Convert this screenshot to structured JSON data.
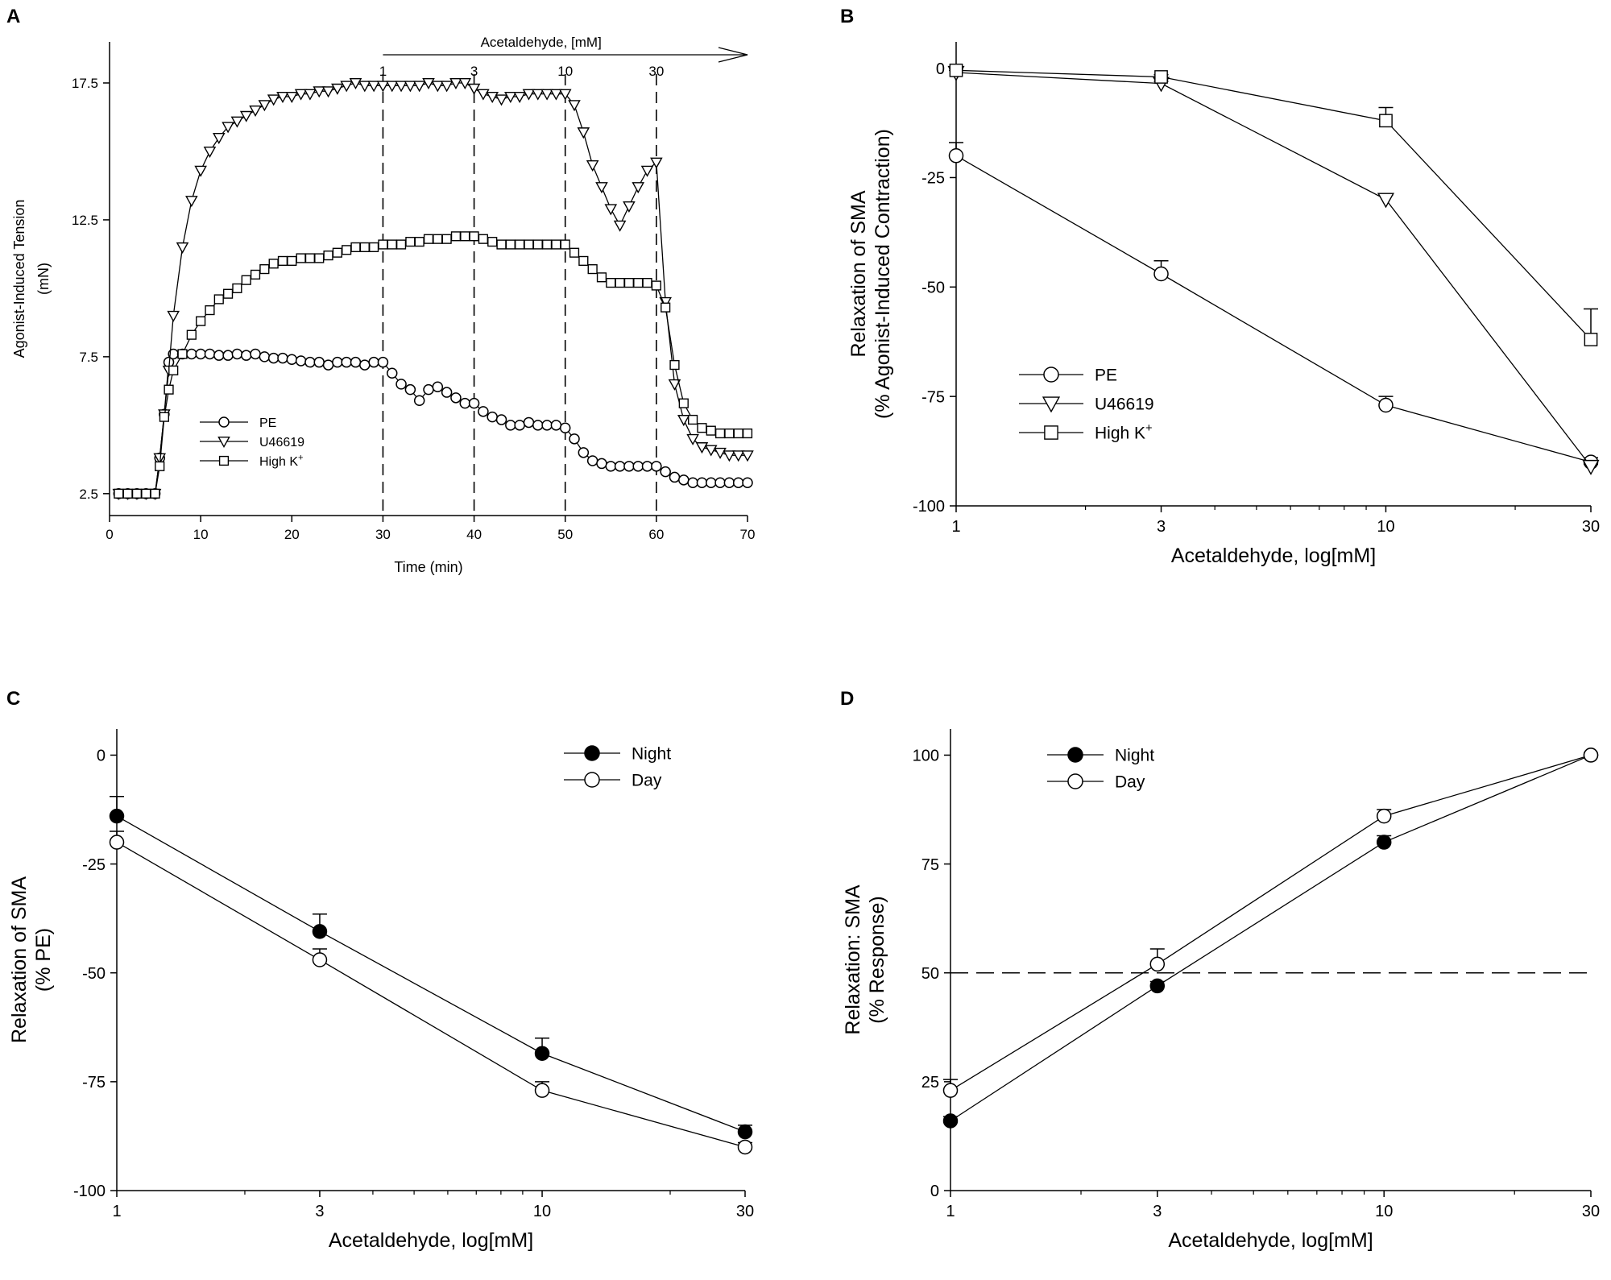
{
  "chart_data": [
    {
      "panel": "A",
      "type": "line",
      "xlabel": "Time (min)",
      "ylabel": "Agonist-Induced Tension",
      "ylabel2": "(mN)",
      "xlim": [
        0,
        70
      ],
      "ylim": [
        1.7,
        19.0
      ],
      "xticks": [
        0,
        10,
        20,
        30,
        40,
        50,
        60,
        70
      ],
      "yticks": [
        2.5,
        7.5,
        12.5,
        17.5
      ],
      "annotation": "Acetaldehyde, [mM]",
      "dose_marks": [
        {
          "label": "1",
          "x": 30
        },
        {
          "label": "3",
          "x": 40
        },
        {
          "label": "10",
          "x": 50
        },
        {
          "label": "30",
          "x": 60
        }
      ],
      "legend": [
        "PE",
        "U46619",
        "High K+"
      ],
      "series": [
        {
          "name": "PE",
          "marker": "circle",
          "x": [
            1,
            2,
            3,
            4,
            5,
            5.5,
            6,
            6.5,
            7,
            8,
            9,
            10,
            11,
            12,
            13,
            14,
            15,
            16,
            17,
            18,
            19,
            20,
            21,
            22,
            23,
            24,
            25,
            26,
            27,
            28,
            29,
            30,
            31,
            32,
            33,
            34,
            35,
            36,
            37,
            38,
            39,
            40,
            41,
            42,
            43,
            44,
            45,
            46,
            47,
            48,
            49,
            50,
            51,
            52,
            53,
            54,
            55,
            56,
            57,
            58,
            59,
            60,
            61,
            62,
            63,
            64,
            65,
            66,
            67,
            68,
            69,
            70
          ],
          "y": [
            2.5,
            2.5,
            2.5,
            2.5,
            2.5,
            3.8,
            5.4,
            7.3,
            7.6,
            7.6,
            7.6,
            7.6,
            7.6,
            7.55,
            7.55,
            7.6,
            7.55,
            7.6,
            7.5,
            7.45,
            7.45,
            7.4,
            7.35,
            7.3,
            7.3,
            7.2,
            7.3,
            7.3,
            7.3,
            7.2,
            7.3,
            7.3,
            6.9,
            6.5,
            6.3,
            5.9,
            6.3,
            6.4,
            6.2,
            6.0,
            5.8,
            5.8,
            5.5,
            5.3,
            5.2,
            5.0,
            5.0,
            5.1,
            5.0,
            5.0,
            5.0,
            4.9,
            4.5,
            4.0,
            3.7,
            3.6,
            3.5,
            3.5,
            3.5,
            3.5,
            3.5,
            3.5,
            3.3,
            3.1,
            3.0,
            2.9,
            2.9,
            2.9,
            2.9,
            2.9,
            2.9,
            2.9
          ]
        },
        {
          "name": "U46619",
          "marker": "triangle",
          "x": [
            1,
            2,
            3,
            4,
            5,
            5.5,
            6,
            6.5,
            7,
            8,
            9,
            10,
            11,
            12,
            13,
            14,
            15,
            16,
            17,
            18,
            19,
            20,
            21,
            22,
            23,
            24,
            25,
            26,
            27,
            28,
            29,
            30,
            31,
            32,
            33,
            34,
            35,
            36,
            37,
            38,
            39,
            40,
            41,
            42,
            43,
            44,
            45,
            46,
            47,
            48,
            49,
            50,
            51,
            52,
            53,
            54,
            55,
            56,
            57,
            58,
            59,
            60,
            61,
            62,
            63,
            64,
            65,
            66,
            67,
            68,
            69,
            70
          ],
          "y": [
            2.5,
            2.5,
            2.5,
            2.5,
            2.5,
            3.8,
            5.4,
            7.0,
            9.0,
            11.5,
            13.2,
            14.3,
            15.0,
            15.5,
            15.9,
            16.1,
            16.3,
            16.5,
            16.7,
            16.9,
            17.0,
            17.0,
            17.1,
            17.1,
            17.2,
            17.2,
            17.3,
            17.4,
            17.5,
            17.4,
            17.4,
            17.4,
            17.4,
            17.4,
            17.4,
            17.4,
            17.5,
            17.4,
            17.4,
            17.5,
            17.5,
            17.3,
            17.1,
            17.0,
            16.9,
            17.0,
            17.0,
            17.1,
            17.1,
            17.1,
            17.1,
            17.1,
            16.7,
            15.7,
            14.5,
            13.7,
            12.9,
            12.3,
            13.0,
            13.7,
            14.3,
            14.6,
            9.5,
            6.5,
            5.2,
            4.5,
            4.2,
            4.1,
            4.0,
            3.9,
            3.9,
            3.9
          ]
        },
        {
          "name": "High K+",
          "marker": "square",
          "x": [
            1,
            2,
            3,
            4,
            5,
            5.5,
            6,
            6.5,
            7,
            8,
            9,
            10,
            11,
            12,
            13,
            14,
            15,
            16,
            17,
            18,
            19,
            20,
            21,
            22,
            23,
            24,
            25,
            26,
            27,
            28,
            29,
            30,
            31,
            32,
            33,
            34,
            35,
            36,
            37,
            38,
            39,
            40,
            41,
            42,
            43,
            44,
            45,
            46,
            47,
            48,
            49,
            50,
            51,
            52,
            53,
            54,
            55,
            56,
            57,
            58,
            59,
            60,
            61,
            62,
            63,
            64,
            65,
            66,
            67,
            68,
            69,
            70
          ],
          "y": [
            2.5,
            2.5,
            2.5,
            2.5,
            2.5,
            3.5,
            5.3,
            6.3,
            7.0,
            7.6,
            8.3,
            8.8,
            9.2,
            9.6,
            9.8,
            10.0,
            10.3,
            10.5,
            10.7,
            10.9,
            11.0,
            11.0,
            11.1,
            11.1,
            11.1,
            11.2,
            11.3,
            11.4,
            11.5,
            11.5,
            11.5,
            11.6,
            11.6,
            11.6,
            11.7,
            11.7,
            11.8,
            11.8,
            11.8,
            11.9,
            11.9,
            11.9,
            11.8,
            11.7,
            11.6,
            11.6,
            11.6,
            11.6,
            11.6,
            11.6,
            11.6,
            11.6,
            11.3,
            11.0,
            10.7,
            10.4,
            10.2,
            10.2,
            10.2,
            10.2,
            10.2,
            10.1,
            9.3,
            7.2,
            5.8,
            5.2,
            4.9,
            4.8,
            4.7,
            4.7,
            4.7,
            4.7
          ]
        }
      ]
    },
    {
      "panel": "B",
      "type": "line",
      "xscale": "log",
      "xlabel": "Acetaldehyde, log[mM]",
      "ylabel": "Relaxation of SMA",
      "ylabel2": "(% Agonist-Induced Contraction)",
      "xlim": [
        1,
        30
      ],
      "ylim": [
        -100,
        6
      ],
      "xticks": [
        1,
        3,
        10,
        30
      ],
      "yticks": [
        0,
        -25,
        -50,
        -75,
        -100
      ],
      "legend": [
        "PE",
        "U46619",
        "High K+"
      ],
      "series": [
        {
          "name": "PE",
          "marker": "circle",
          "x": [
            1,
            3,
            10,
            30
          ],
          "y": [
            -20,
            -47,
            -77,
            -90
          ],
          "err": [
            3,
            3,
            2,
            1
          ]
        },
        {
          "name": "U46619",
          "marker": "triangle",
          "x": [
            1,
            3,
            10,
            30
          ],
          "y": [
            -1,
            -3.5,
            -30,
            -91
          ],
          "err": [
            0.5,
            0.5,
            1,
            0.5
          ]
        },
        {
          "name": "High K+",
          "marker": "square",
          "x": [
            1,
            3,
            10,
            30
          ],
          "y": [
            -0.5,
            -2,
            -12,
            -62
          ],
          "err": [
            0.5,
            0.5,
            3,
            7
          ]
        }
      ]
    },
    {
      "panel": "C",
      "type": "line",
      "xscale": "log",
      "xlabel": "Acetaldehyde, log[mM]",
      "ylabel": "Relaxation of SMA",
      "ylabel2": "(% PE)",
      "xlim": [
        1,
        30
      ],
      "ylim": [
        -100,
        6
      ],
      "xticks": [
        1,
        3,
        10,
        30
      ],
      "yticks": [
        0,
        -25,
        -50,
        -75,
        -100
      ],
      "legend": [
        "Night",
        "Day"
      ],
      "series": [
        {
          "name": "Night",
          "marker": "filled-circle",
          "x": [
            1,
            3,
            10,
            30
          ],
          "y": [
            -14,
            -40.5,
            -68.5,
            -86.5
          ],
          "err": [
            4.5,
            4,
            3.5,
            1.5
          ]
        },
        {
          "name": "Day",
          "marker": "circle",
          "x": [
            1,
            3,
            10,
            30
          ],
          "y": [
            -20,
            -47,
            -77,
            -90
          ],
          "err": [
            2.5,
            2.5,
            2,
            1
          ]
        }
      ]
    },
    {
      "panel": "D",
      "type": "line",
      "xscale": "log",
      "xlabel": "Acetaldehyde, log[mM]",
      "ylabel": "Relaxation: SMA",
      "ylabel2": "(% Response)",
      "xlim": [
        1,
        30
      ],
      "ylim": [
        0,
        106
      ],
      "xticks": [
        1,
        3,
        10,
        30
      ],
      "yticks": [
        0,
        25,
        50,
        75,
        100
      ],
      "reference_line": 50,
      "legend": [
        "Night",
        "Day"
      ],
      "series": [
        {
          "name": "Night",
          "marker": "filled-circle",
          "x": [
            1,
            3,
            10,
            30
          ],
          "y": [
            16,
            47,
            80,
            100
          ],
          "err": [
            1,
            1,
            1.5,
            0
          ]
        },
        {
          "name": "Day",
          "marker": "circle",
          "x": [
            1,
            3,
            10,
            30
          ],
          "y": [
            23,
            52,
            86,
            100
          ],
          "err": [
            2.5,
            3.5,
            1.5,
            0
          ]
        }
      ]
    }
  ]
}
